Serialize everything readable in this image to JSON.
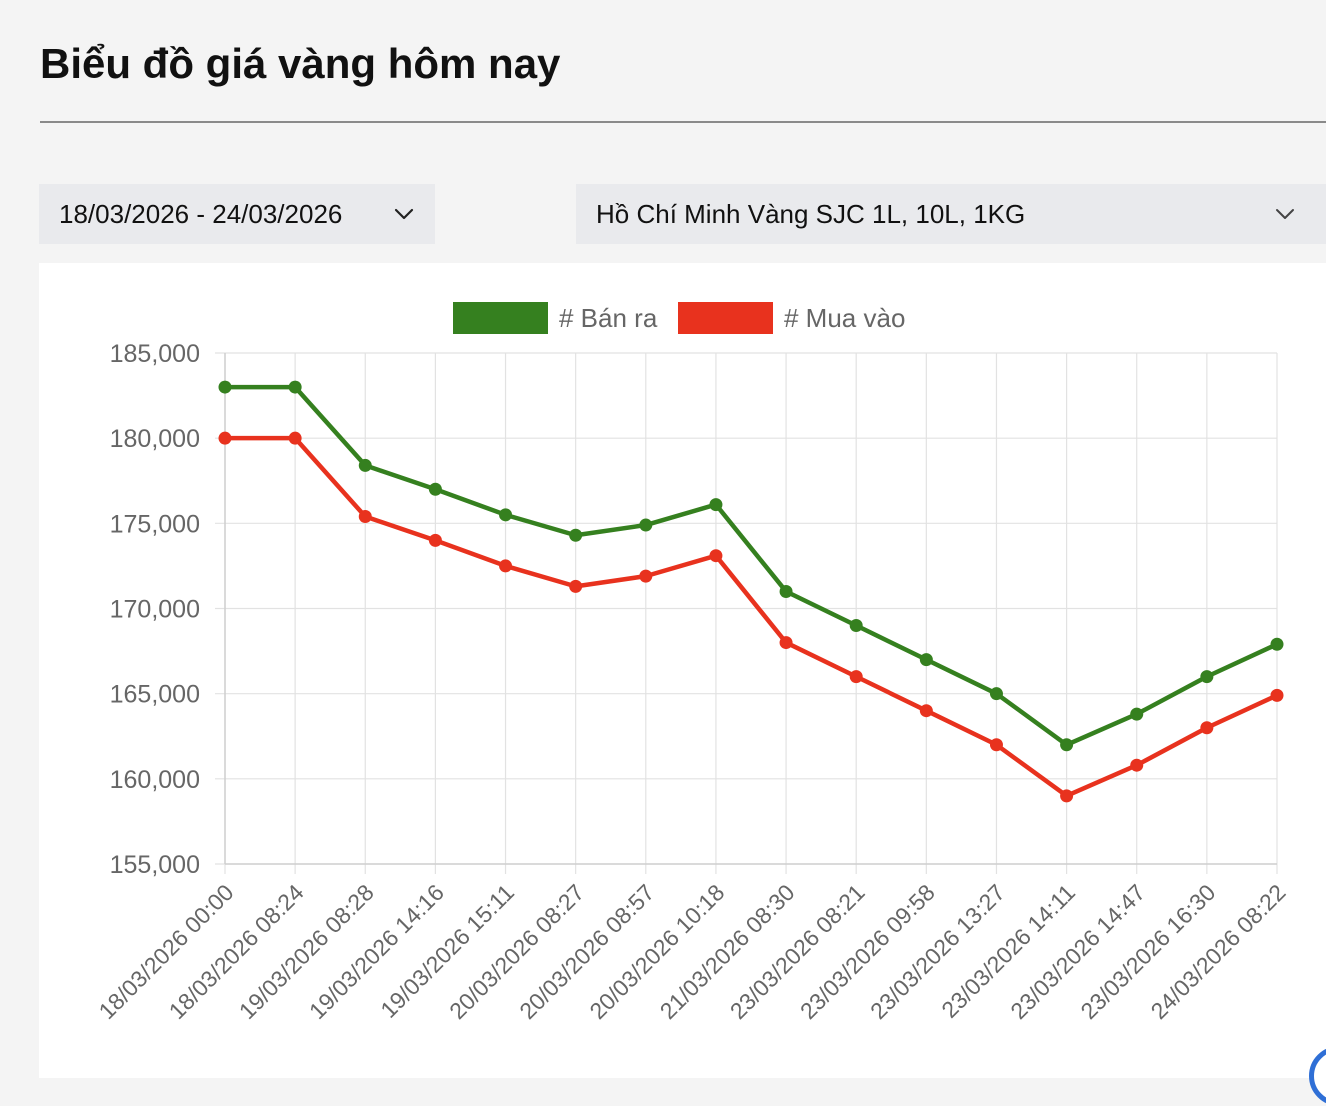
{
  "header": {
    "title": "Biểu đồ giá vàng hôm nay"
  },
  "filters": {
    "date_range": "18/03/2026 - 24/03/2026",
    "location_product": "Hồ Chí Minh Vàng SJC 1L, 10L, 1KG"
  },
  "chart_data": {
    "type": "line",
    "title": "",
    "xlabel": "",
    "ylabel": "",
    "ylim": [
      155000,
      185000
    ],
    "y_ticks": [
      185000,
      180000,
      175000,
      170000,
      165000,
      160000,
      155000
    ],
    "y_tick_labels": [
      "185,000",
      "180,000",
      "175,000",
      "170,000",
      "165,000",
      "160,000",
      "155,000"
    ],
    "grid": true,
    "legend_position": "top",
    "x": [
      "18/03/2026 00:00",
      "18/03/2026 08:24",
      "19/03/2026 08:28",
      "19/03/2026 14:16",
      "19/03/2026 15:11",
      "20/03/2026 08:27",
      "20/03/2026 08:57",
      "20/03/2026 10:18",
      "21/03/2026 08:30",
      "23/03/2026 08:21",
      "23/03/2026 09:58",
      "23/03/2026 13:27",
      "23/03/2026 14:11",
      "23/03/2026 14:47",
      "23/03/2026 16:30",
      "24/03/2026 08:22"
    ],
    "series": [
      {
        "name": "# Bán ra",
        "color": "#35801f",
        "values": [
          183000,
          183000,
          178400,
          177000,
          175500,
          174300,
          174900,
          176100,
          171000,
          169000,
          167000,
          165000,
          162000,
          163800,
          166000,
          167900
        ]
      },
      {
        "name": "# Mua vào",
        "color": "#e8321e",
        "values": [
          180000,
          180000,
          175400,
          174000,
          172500,
          171300,
          171900,
          173100,
          168000,
          166000,
          164000,
          162000,
          159000,
          160800,
          163000,
          164900
        ]
      }
    ]
  }
}
